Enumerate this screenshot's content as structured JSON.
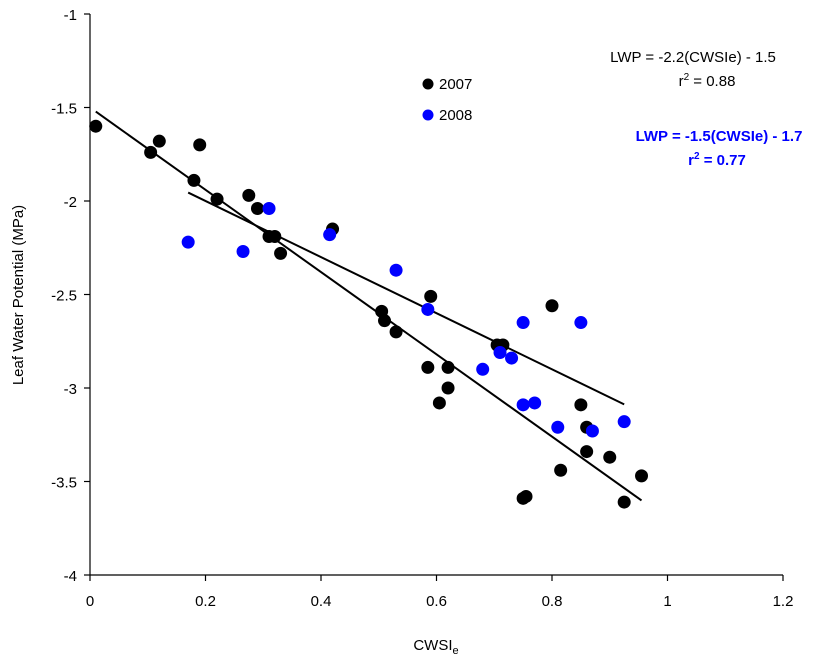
{
  "chart_data": {
    "type": "scatter",
    "xlabel": "CWSI",
    "xlabel_sub": "e",
    "ylabel": "Leaf Water Potential (MPa)",
    "xlim": [
      0,
      1.2
    ],
    "ylim": [
      -4,
      -1
    ],
    "x_ticks": [
      0,
      0.2,
      0.4,
      0.6,
      0.8,
      1,
      1.2
    ],
    "y_ticks": [
      -1,
      -1.5,
      -2,
      -2.5,
      -3,
      -3.5,
      -4
    ],
    "x_tick_labels": [
      "0",
      "0.2",
      "0.4",
      "0.6",
      "0.8",
      "1",
      "1.2"
    ],
    "y_tick_labels": [
      "-1",
      "-1.5",
      "-2",
      "-2.5",
      "-3",
      "-3.5",
      "-4"
    ],
    "grid": false,
    "legend_position": "top-center",
    "series": [
      {
        "name": "2007",
        "color": "#000000",
        "points": [
          [
            0.01,
            -1.6
          ],
          [
            0.105,
            -1.74
          ],
          [
            0.12,
            -1.68
          ],
          [
            0.18,
            -1.89
          ],
          [
            0.19,
            -1.7
          ],
          [
            0.22,
            -1.99
          ],
          [
            0.275,
            -1.97
          ],
          [
            0.29,
            -2.04
          ],
          [
            0.31,
            -2.19
          ],
          [
            0.32,
            -2.19
          ],
          [
            0.33,
            -2.28
          ],
          [
            0.42,
            -2.15
          ],
          [
            0.505,
            -2.59
          ],
          [
            0.51,
            -2.64
          ],
          [
            0.53,
            -2.7
          ],
          [
            0.585,
            -2.89
          ],
          [
            0.59,
            -2.51
          ],
          [
            0.605,
            -3.08
          ],
          [
            0.62,
            -2.89
          ],
          [
            0.62,
            -3.0
          ],
          [
            0.705,
            -2.77
          ],
          [
            0.715,
            -2.77
          ],
          [
            0.75,
            -3.59
          ],
          [
            0.755,
            -3.58
          ],
          [
            0.8,
            -2.56
          ],
          [
            0.815,
            -3.44
          ],
          [
            0.85,
            -3.09
          ],
          [
            0.86,
            -3.21
          ],
          [
            0.86,
            -3.34
          ],
          [
            0.9,
            -3.37
          ],
          [
            0.925,
            -3.61
          ],
          [
            0.955,
            -3.47
          ]
        ],
        "fit": {
          "slope": -2.2,
          "intercept": -1.5,
          "x_range": [
            0.01,
            0.955
          ]
        }
      },
      {
        "name": "2008",
        "color": "#0000ff",
        "points": [
          [
            0.17,
            -2.22
          ],
          [
            0.265,
            -2.27
          ],
          [
            0.31,
            -2.04
          ],
          [
            0.415,
            -2.18
          ],
          [
            0.53,
            -2.37
          ],
          [
            0.585,
            -2.58
          ],
          [
            0.68,
            -2.9
          ],
          [
            0.71,
            -2.81
          ],
          [
            0.73,
            -2.84
          ],
          [
            0.75,
            -2.65
          ],
          [
            0.75,
            -3.09
          ],
          [
            0.77,
            -3.08
          ],
          [
            0.81,
            -3.21
          ],
          [
            0.85,
            -2.65
          ],
          [
            0.87,
            -3.23
          ],
          [
            0.925,
            -3.18
          ]
        ],
        "fit": {
          "slope": -1.5,
          "intercept": -1.7,
          "x_range": [
            0.17,
            0.925
          ]
        }
      }
    ],
    "annotations": {
      "eq2007": "LWP = -2.2(CWSIe) - 1.5",
      "r2_2007_prefix": "r",
      "r2_2007_sup": "2",
      "r2_2007_value": " = 0.88",
      "eq2008": "LWP = -1.5(CWSIe) - 1.7",
      "r2_2008_prefix": "r",
      "r2_2008_sup": "2",
      "r2_2008_value": " = 0.77"
    }
  }
}
